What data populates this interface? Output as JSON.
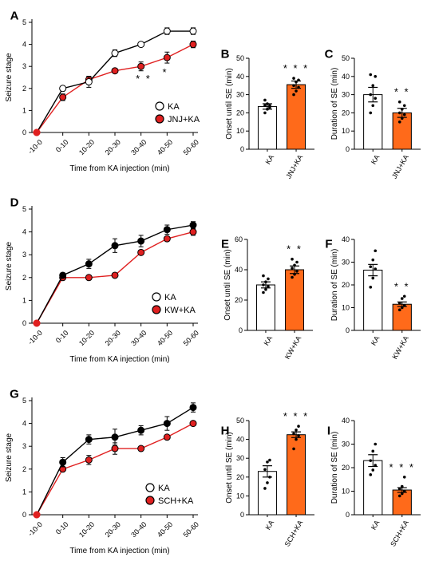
{
  "colors": {
    "red": "#e02020",
    "orange": "#ff6a1a",
    "black": "#000000",
    "white": "#ffffff"
  },
  "chart_data": [
    {
      "panel": "A",
      "type": "line",
      "xlabel": "Time from KA injection (min)",
      "ylabel": "Seizure stage",
      "categories": [
        "-10-0",
        "0-10",
        "10-20",
        "20-30",
        "30-40",
        "40-50",
        "50-60"
      ],
      "ylim": [
        0,
        5
      ],
      "yticks": [
        "0",
        "1",
        "2",
        "3",
        "4",
        "5"
      ],
      "series": [
        {
          "name": "KA",
          "marker": "open",
          "values": [
            0,
            2.0,
            2.3,
            3.6,
            4.0,
            4.6,
            4.6
          ],
          "err": [
            0,
            0.05,
            0.25,
            0.15,
            0,
            0.15,
            0.15
          ]
        },
        {
          "name": "JNJ+KA",
          "marker": "red",
          "values": [
            0,
            1.6,
            2.4,
            2.8,
            3.0,
            3.4,
            4.0
          ],
          "err": [
            0,
            0.15,
            0.15,
            0.05,
            0.2,
            0.25,
            0.15
          ]
        }
      ],
      "annotations": [
        {
          "x": "30-40",
          "text": "* *"
        },
        {
          "x": "40-50",
          "text": "*"
        }
      ]
    },
    {
      "panel": "B",
      "type": "bar",
      "ylabel": "Onset until SE (min)",
      "ylim": [
        0,
        50
      ],
      "yticks": [
        "0",
        "10",
        "20",
        "30",
        "40",
        "50"
      ],
      "categories": [
        "KA",
        "JNJ+KA"
      ],
      "values": [
        23.5,
        35.5
      ],
      "err": [
        1.5,
        2.0
      ],
      "points": [
        [
          20,
          22,
          23,
          24,
          25,
          24,
          27
        ],
        [
          30,
          32,
          34,
          35,
          37,
          38,
          39
        ]
      ],
      "fills": [
        "white",
        "orange"
      ],
      "annotation": "* * *"
    },
    {
      "panel": "C",
      "type": "bar",
      "ylabel": "Duration of SE (min)",
      "ylim": [
        0,
        50
      ],
      "yticks": [
        "0",
        "10",
        "20",
        "30",
        "40",
        "50"
      ],
      "categories": [
        "KA",
        "JNJ+KA"
      ],
      "values": [
        30.0,
        20.0
      ],
      "err": [
        4.0,
        2.5
      ],
      "points": [
        [
          20,
          24,
          28,
          30,
          35,
          40,
          41
        ],
        [
          15,
          17,
          19,
          20,
          22,
          24,
          26
        ]
      ],
      "fills": [
        "white",
        "orange"
      ],
      "annotation": "* *"
    },
    {
      "panel": "D",
      "type": "line",
      "xlabel": "Time from KA injection (min)",
      "ylabel": "Seizure stage",
      "categories": [
        "-10-0",
        "0-10",
        "10-20",
        "20-30",
        "30-40",
        "40-50",
        "50-60"
      ],
      "ylim": [
        0,
        5
      ],
      "yticks": [
        "0",
        "1",
        "2",
        "3",
        "4",
        "5"
      ],
      "series": [
        {
          "name": "KA",
          "marker": "black",
          "values": [
            0,
            2.1,
            2.6,
            3.4,
            3.6,
            4.1,
            4.3
          ],
          "err": [
            0,
            0.05,
            0.2,
            0.3,
            0.25,
            0.2,
            0.15
          ]
        },
        {
          "name": "KW+KA",
          "marker": "red",
          "values": [
            0,
            2.0,
            2.0,
            2.1,
            3.1,
            3.7,
            4.0
          ],
          "err": [
            0,
            0.05,
            0.05,
            0.05,
            0.1,
            0.1,
            0.15
          ]
        }
      ],
      "legend": [
        "KA",
        "KW+KA"
      ]
    },
    {
      "panel": "E",
      "type": "bar",
      "ylabel": "Onset until SE (min)",
      "ylim": [
        0,
        60
      ],
      "yticks": [
        "0",
        "20",
        "40",
        "60"
      ],
      "categories": [
        "KA",
        "KW+KA"
      ],
      "values": [
        30,
        40
      ],
      "err": [
        2.0,
        2.5
      ],
      "points": [
        [
          25,
          27,
          29,
          30,
          32,
          34,
          36
        ],
        [
          35,
          37,
          39,
          41,
          43,
          45,
          47
        ]
      ],
      "fills": [
        "white",
        "orange"
      ],
      "annotation": "* *"
    },
    {
      "panel": "F",
      "type": "bar",
      "ylabel": "Duration of SE (min)",
      "ylim": [
        0,
        40
      ],
      "yticks": [
        "0",
        "10",
        "20",
        "30",
        "40"
      ],
      "categories": [
        "KA",
        "KW+KA"
      ],
      "values": [
        26.5,
        11.5
      ],
      "err": [
        2.5,
        1.0
      ],
      "points": [
        [
          19,
          23,
          27,
          28,
          31,
          35
        ],
        [
          9,
          10,
          11,
          12,
          14,
          15
        ]
      ],
      "fills": [
        "white",
        "orange"
      ],
      "annotation": "* *"
    },
    {
      "panel": "G",
      "type": "line",
      "xlabel": "Time from KA injection (min)",
      "ylabel": "Seizure stage",
      "categories": [
        "-10-0",
        "0-10",
        "10-20",
        "20-30",
        "30-40",
        "40-50",
        "50-60"
      ],
      "ylim": [
        0,
        5
      ],
      "yticks": [
        "0",
        "1",
        "2",
        "3",
        "4",
        "5"
      ],
      "series": [
        {
          "name": "KA",
          "marker": "black",
          "values": [
            0,
            2.3,
            3.3,
            3.4,
            3.7,
            4.0,
            4.7
          ],
          "err": [
            0,
            0.2,
            0.2,
            0.35,
            0.2,
            0.3,
            0.2
          ]
        },
        {
          "name": "SCH+KA",
          "marker": "red",
          "values": [
            0,
            2.0,
            2.4,
            2.9,
            2.9,
            3.4,
            4.0
          ],
          "err": [
            0,
            0.05,
            0.2,
            0.25,
            0.05,
            0.05,
            0.05
          ]
        }
      ],
      "legend": [
        "KA",
        "SCH+KA"
      ]
    },
    {
      "panel": "H",
      "type": "bar",
      "ylabel": "Onset until SE (min)",
      "ylim": [
        0,
        50
      ],
      "yticks": [
        "0",
        "10",
        "20",
        "30",
        "40",
        "50"
      ],
      "categories": [
        "KA",
        "SCH+KA"
      ],
      "values": [
        23,
        42.5
      ],
      "err": [
        3.0,
        1.5
      ],
      "points": [
        [
          14,
          17,
          20,
          24,
          28,
          29
        ],
        [
          35,
          40,
          42,
          43,
          45,
          47
        ]
      ],
      "fills": [
        "white",
        "orange"
      ],
      "annotation": "* * *"
    },
    {
      "panel": "I",
      "type": "bar",
      "ylabel": "Duration of SE (min)",
      "ylim": [
        0,
        40
      ],
      "yticks": [
        "0",
        "10",
        "20",
        "30",
        "40"
      ],
      "categories": [
        "KA",
        "SCH+KA"
      ],
      "values": [
        23,
        10.5
      ],
      "err": [
        2.5,
        1.0
      ],
      "points": [
        [
          17,
          19,
          21,
          23,
          27,
          30
        ],
        [
          8,
          9,
          10,
          11,
          12,
          16
        ]
      ],
      "fills": [
        "white",
        "orange"
      ],
      "annotation": "* * *"
    }
  ]
}
